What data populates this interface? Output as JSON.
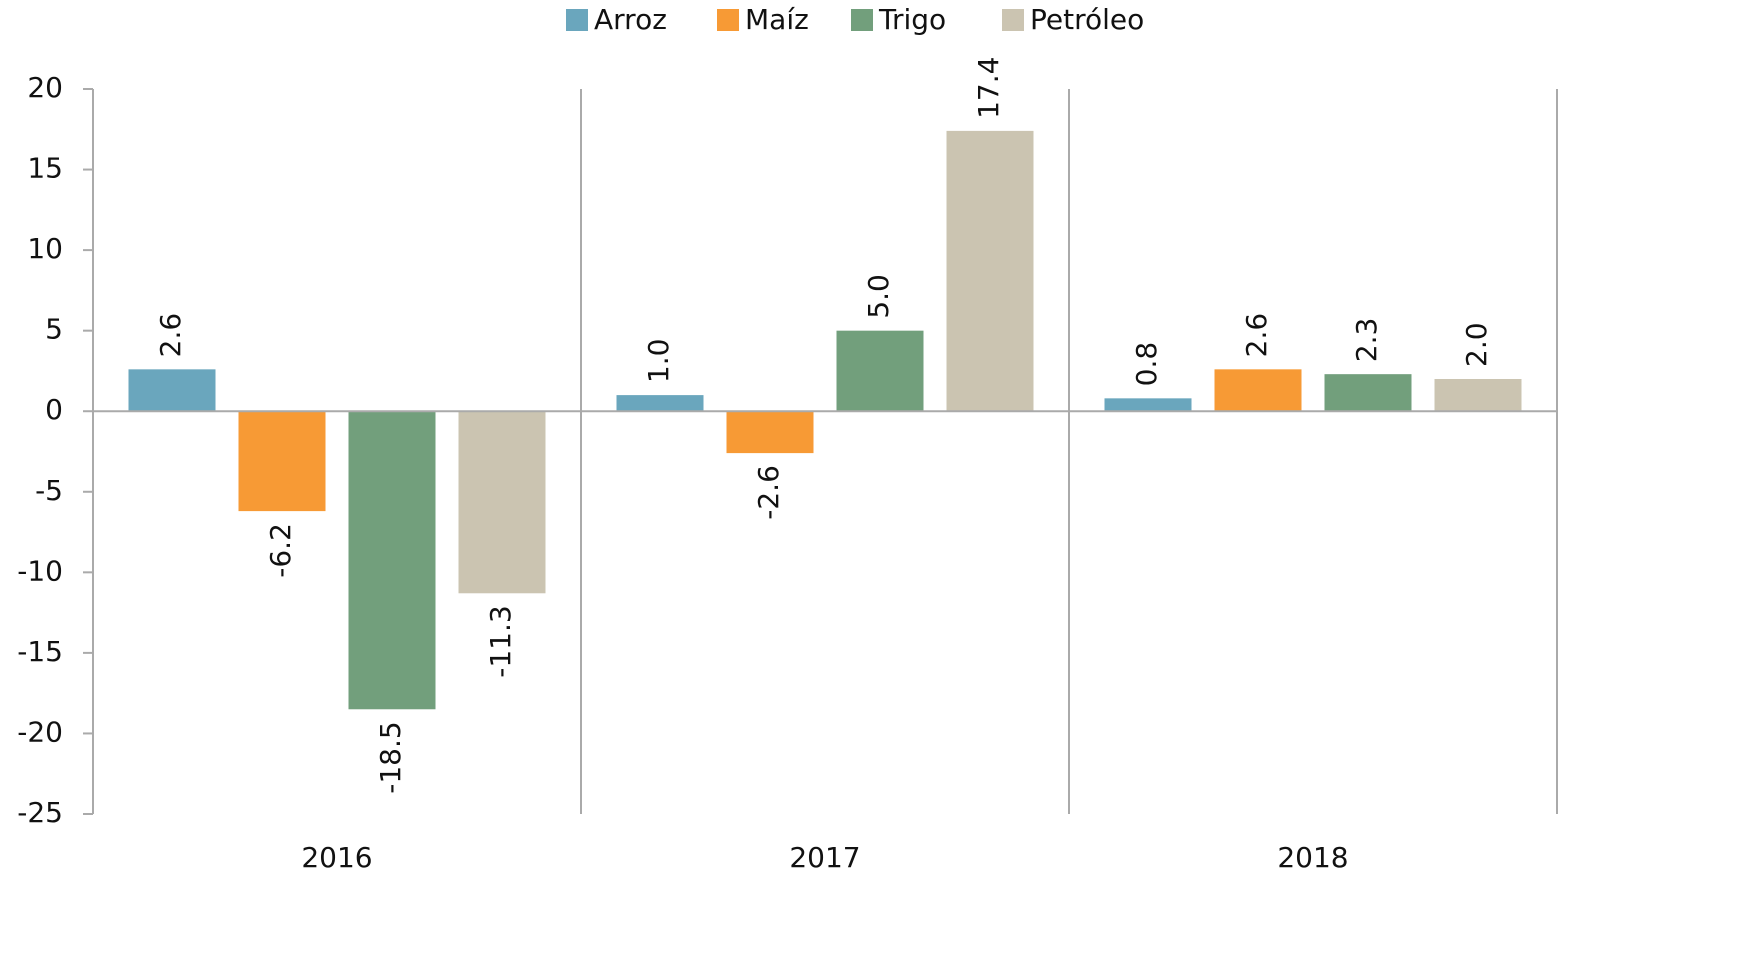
{
  "chart_data": {
    "type": "bar",
    "categories": [
      "2016",
      "2017",
      "2018"
    ],
    "series": [
      {
        "name": "Arroz",
        "color": "#6aa6bd",
        "values": [
          2.6,
          1.0,
          0.8
        ],
        "value_labels": [
          "2.6",
          "1.0",
          "0.8"
        ]
      },
      {
        "name": "Maíz",
        "color": "#f79a35",
        "values": [
          -6.2,
          -2.6,
          2.6
        ],
        "value_labels": [
          "-6.2",
          "-2.6",
          "2.6"
        ]
      },
      {
        "name": "Trigo",
        "color": "#729f7c",
        "values": [
          -18.5,
          5.0,
          2.3
        ],
        "value_labels": [
          "-18.5",
          "5.0",
          "2.3"
        ]
      },
      {
        "name": "Petróleo",
        "color": "#cbc4b1",
        "values": [
          -11.3,
          17.4,
          2.0
        ],
        "value_labels": [
          "-11.3",
          "17.4",
          "2.0"
        ]
      }
    ],
    "ylim": [
      -25,
      20
    ],
    "yticks": [
      -25,
      -20,
      -15,
      -10,
      -5,
      0,
      5,
      10,
      15,
      20
    ],
    "legend": "top"
  }
}
